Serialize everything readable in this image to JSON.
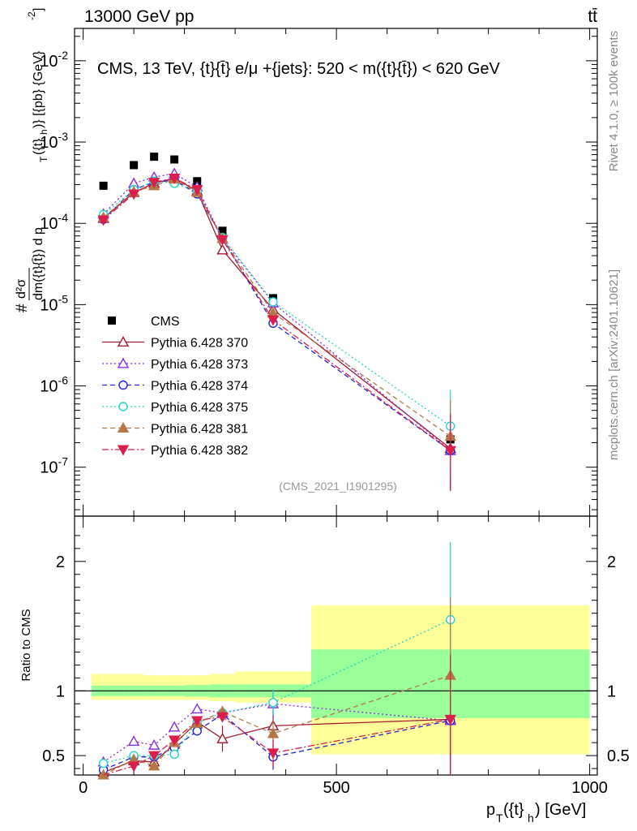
{
  "header": {
    "energy_label": "13000 GeV pp",
    "process_label": "tt̄",
    "rivet_label": "Rivet 4.1.0, ≥ 100k events",
    "site_label": "mcplots.cern.ch [arXiv:2401.10621]"
  },
  "chart_data": {
    "type": "line",
    "title": "CMS, 13 TeV, {t}{t̄} e/μ +{jets}: 520 < m({t}{t̄}) < 620 GeV",
    "analysis_label": "(CMS_2021_I1901295)",
    "upper_panel": {
      "ylabel_parts": [
        "#",
        "d²σ",
        "dm({t}{t̄}) d p",
        "T",
        "({t}",
        "h",
        ")} [{pb} {GeV}",
        "-2",
        "]"
      ],
      "yscale": "log",
      "ylim": [
        2.5e-08,
        0.025
      ],
      "ytick_labels": [
        {
          "value": 1e-07,
          "base": "10",
          "exp": "-7"
        },
        {
          "value": 1e-06,
          "base": "10",
          "exp": "-6"
        },
        {
          "value": 1e-05,
          "base": "10",
          "exp": "-5"
        },
        {
          "value": 0.0001,
          "base": "10",
          "exp": "-4"
        },
        {
          "value": 0.001,
          "base": "10",
          "exp": "-3"
        },
        {
          "value": 0.01,
          "base": "10",
          "exp": "-2"
        }
      ]
    },
    "ratio_panel": {
      "ylabel": "Ratio to CMS",
      "ylim": [
        0.35,
        2.35
      ],
      "ytick_labels": [
        "0.5",
        "1",
        "2"
      ],
      "ytick_values": [
        0.5,
        1,
        2
      ]
    },
    "xlabel_parts": [
      "p",
      "T",
      "({t}",
      "h",
      ") [GeV]"
    ],
    "xlim": [
      -17,
      1015
    ],
    "xtick_labels": [
      "0",
      "500",
      "1000"
    ],
    "xtick_values": [
      0,
      500,
      1000
    ],
    "x": [
      40,
      100,
      140,
      180,
      225,
      275,
      375,
      725
    ],
    "bin_edges": [
      0,
      80,
      120,
      160,
      200,
      250,
      300,
      450,
      1000
    ],
    "data": {
      "name": "CMS",
      "values": [
        0.00029,
        0.00052,
        0.00066,
        0.00061,
        0.00033,
        8.1e-05,
        1.2e-05,
        2.2e-07
      ],
      "band_inner": [
        [
          0.96,
          1.04
        ],
        [
          0.96,
          1.04
        ],
        [
          0.96,
          1.04
        ],
        [
          0.96,
          1.04
        ],
        [
          0.955,
          1.045
        ],
        [
          0.95,
          1.05
        ],
        [
          0.95,
          1.05
        ],
        [
          0.79,
          1.32
        ]
      ],
      "band_outer": [
        [
          0.93,
          1.13
        ],
        [
          0.93,
          1.13
        ],
        [
          0.93,
          1.12
        ],
        [
          0.93,
          1.12
        ],
        [
          0.93,
          1.12
        ],
        [
          0.92,
          1.13
        ],
        [
          0.91,
          1.15
        ],
        [
          0.51,
          1.66
        ]
      ]
    },
    "series": [
      {
        "name": "Pythia 6.428 370",
        "color": "#a11a2e",
        "style": "solid",
        "marker": "triangle-up-open",
        "values": [
          0.000115,
          0.00024,
          0.00031,
          0.00036,
          0.00025,
          4.7e-05,
          8.7e-06,
          1.7e-07
        ],
        "ratio": [
          0.37,
          0.46,
          0.45,
          0.59,
          0.76,
          0.63,
          0.73,
          0.78
        ],
        "ratio_err": [
          0.02,
          0.03,
          0.03,
          0.03,
          0.04,
          0.1,
          0.12,
          0.5
        ]
      },
      {
        "name": "Pythia 6.428 373",
        "color": "#8b2be2",
        "style": "dotted",
        "marker": "triangle-up-open",
        "values": [
          0.00013,
          0.00031,
          0.00037,
          0.00041,
          0.00028,
          6.5e-05,
          1.05e-05,
          1.6e-07
        ],
        "ratio": [
          0.45,
          0.61,
          0.58,
          0.72,
          0.86,
          0.83,
          0.9,
          0.77
        ],
        "ratio_err": [
          0.02,
          0.03,
          0.03,
          0.03,
          0.03,
          0.04,
          0.1,
          0.4
        ]
      },
      {
        "name": "Pythia 6.428 374",
        "color": "#2222dd",
        "style": "dashed",
        "marker": "circle-open",
        "values": [
          0.000112,
          0.00026,
          0.00032,
          0.00034,
          0.00023,
          6.6e-05,
          5.9e-06,
          1.6e-07
        ],
        "ratio": [
          0.39,
          0.49,
          0.49,
          0.56,
          0.69,
          0.82,
          0.49,
          0.77
        ],
        "ratio_err": [
          0.02,
          0.03,
          0.03,
          0.03,
          0.03,
          0.04,
          0.1,
          0.4
        ]
      },
      {
        "name": "Pythia 6.428 375",
        "color": "#20d6c8",
        "style": "dotted",
        "marker": "circle-open",
        "values": [
          0.000128,
          0.00026,
          0.00033,
          0.00031,
          0.00025,
          6.7e-05,
          1.08e-05,
          3.2e-07
        ],
        "ratio": [
          0.44,
          0.5,
          0.5,
          0.51,
          0.76,
          0.83,
          0.91,
          1.55
        ],
        "ratio_err": [
          0.02,
          0.03,
          0.03,
          0.03,
          0.03,
          0.04,
          0.1,
          0.6
        ]
      },
      {
        "name": "Pythia 6.428 381",
        "color": "#b47848",
        "style": "dashed",
        "marker": "triangle-up-filled",
        "values": [
          0.000118,
          0.000245,
          0.00029,
          0.00035,
          0.00024,
          6.5e-05,
          7.9e-06,
          2.4e-07
        ],
        "ratio": [
          0.35,
          0.47,
          0.42,
          0.6,
          0.75,
          0.84,
          0.67,
          1.12
        ],
        "ratio_err": [
          0.02,
          0.03,
          0.03,
          0.03,
          0.03,
          0.04,
          0.1,
          0.6
        ]
      },
      {
        "name": "Pythia 6.428 382",
        "color": "#dc1e4b",
        "style": "dashdot",
        "marker": "triangle-down-filled",
        "values": [
          0.00011,
          0.00023,
          0.00032,
          0.00036,
          0.00026,
          6.3e-05,
          6.5e-06,
          1.6e-07
        ],
        "ratio": [
          0.33,
          0.42,
          0.5,
          0.62,
          0.77,
          0.8,
          0.52,
          0.78
        ],
        "ratio_err": [
          0.02,
          0.03,
          0.03,
          0.03,
          0.03,
          0.04,
          0.1,
          0.5
        ]
      }
    ]
  }
}
